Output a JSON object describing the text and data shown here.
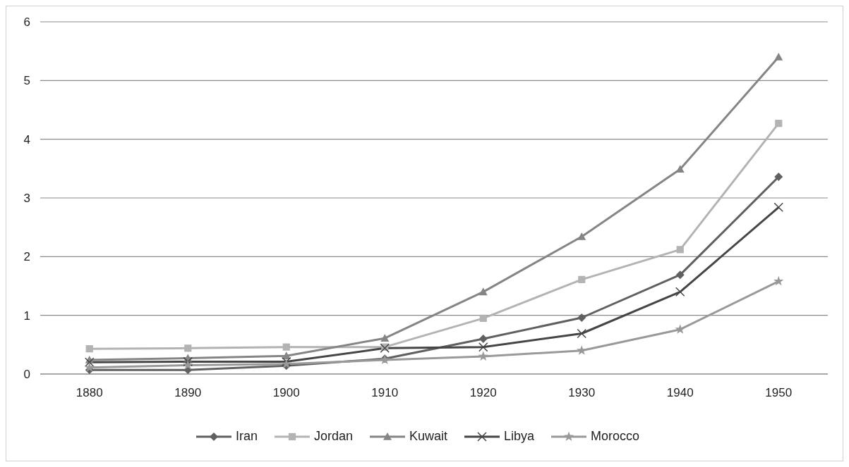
{
  "chart_data": {
    "type": "line",
    "categories": [
      "1880",
      "1890",
      "1900",
      "1910",
      "1920",
      "1930",
      "1940",
      "1950"
    ],
    "series": [
      {
        "name": "Iran",
        "color": "#606060",
        "marker": "diamond",
        "values": [
          0.07,
          0.07,
          0.14,
          0.26,
          0.6,
          0.96,
          1.69,
          3.36
        ]
      },
      {
        "name": "Jordan",
        "color": "#b3b3b3",
        "marker": "square",
        "values": [
          0.43,
          0.44,
          0.46,
          0.46,
          0.95,
          1.61,
          2.12,
          4.27
        ]
      },
      {
        "name": "Kuwait",
        "color": "#858585",
        "marker": "triangle",
        "values": [
          0.24,
          0.27,
          0.31,
          0.61,
          1.4,
          2.34,
          3.49,
          5.4
        ]
      },
      {
        "name": "Libya",
        "color": "#454545",
        "marker": "cross",
        "values": [
          0.2,
          0.21,
          0.21,
          0.44,
          0.46,
          0.69,
          1.4,
          2.84
        ]
      },
      {
        "name": "Morocco",
        "color": "#999999",
        "marker": "star",
        "values": [
          0.11,
          0.15,
          0.17,
          0.24,
          0.3,
          0.4,
          0.76,
          1.58
        ]
      }
    ],
    "ylim": [
      0,
      6
    ],
    "yticks": [
      0,
      1,
      2,
      3,
      4,
      5,
      6
    ],
    "grid": "y",
    "legend": "bottom",
    "line_style": "solid"
  }
}
